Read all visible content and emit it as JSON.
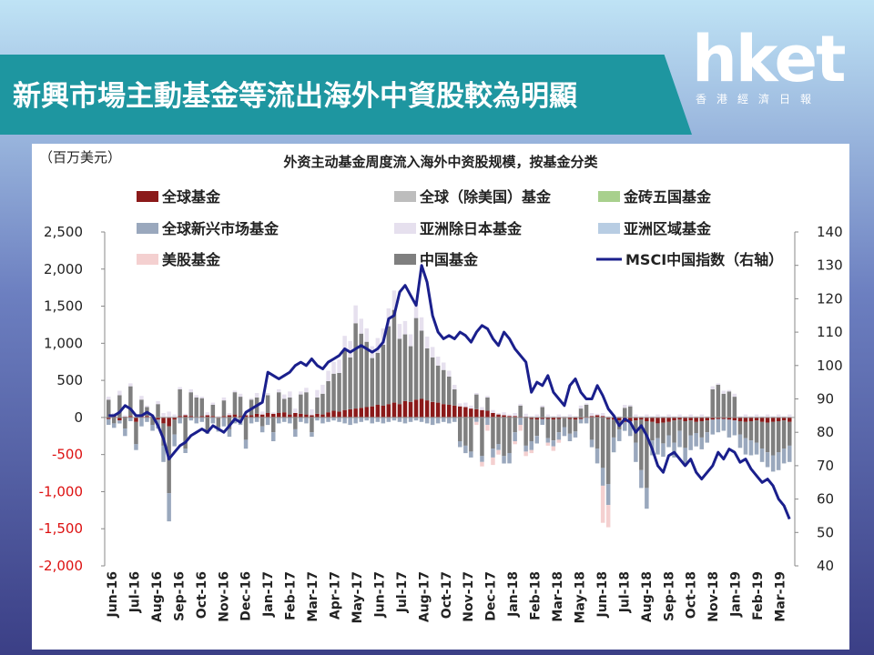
{
  "header": {
    "title": "新興市場主動基金等流出海外中資股較為明顯",
    "logo_text": "hket",
    "logo_sub": "香港經濟日報"
  },
  "chart_data": {
    "type": "bar",
    "title": "外资主动基金周度流入海外中资股规模，按基金分类",
    "ylabel_left": "（百万美元）",
    "left_axis": {
      "ylim": [
        -2000,
        2500
      ],
      "ticks": [
        "2,500",
        "2,000",
        "1,500",
        "1,000",
        "500",
        "0",
        "-500",
        "-1,000",
        "-1,500",
        "-2,000"
      ]
    },
    "right_axis": {
      "ylim": [
        40,
        140
      ],
      "ticks": [
        "140",
        "130",
        "120",
        "110",
        "100",
        "90",
        "80",
        "70",
        "60",
        "50",
        "40"
      ]
    },
    "x_tick_labels": [
      "Jun-16",
      "Jul-16",
      "Aug-16",
      "Sep-16",
      "Oct-16",
      "Nov-16",
      "Dec-16",
      "Jan-17",
      "Feb-17",
      "Mar-17",
      "Apr-17",
      "May-17",
      "Jun-17",
      "Jul-17",
      "Aug-17",
      "Oct-17",
      "Nov-17",
      "Dec-17",
      "Jan-18",
      "Feb-18",
      "Mar-18",
      "May-18",
      "Jun-18",
      "Jul-18",
      "Aug-18",
      "Sep-18",
      "Oct-18",
      "Nov-18",
      "Jan-19",
      "Feb-19",
      "Mar-19"
    ],
    "legend": [
      {
        "name": "全球基金",
        "color": "#8b1a1a",
        "kind": "bar"
      },
      {
        "name": "全球（除美国）基金",
        "color": "#bdbdbd",
        "kind": "bar"
      },
      {
        "name": "金砖五国基金",
        "color": "#a8d08d",
        "kind": "bar"
      },
      {
        "name": "全球新兴市场基金",
        "color": "#9aa8bd",
        "kind": "bar"
      },
      {
        "name": "亚洲除日本基金",
        "color": "#e6e0ee",
        "kind": "bar"
      },
      {
        "name": "亚洲区域基金",
        "color": "#b8cde3",
        "kind": "bar"
      },
      {
        "name": "美股基金",
        "color": "#f4d0d0",
        "kind": "bar"
      },
      {
        "name": "中国基金",
        "color": "#7f7f7f",
        "kind": "bar"
      },
      {
        "name": "MSCI中国指数（右轴）",
        "color": "#1a1f8c",
        "kind": "line"
      }
    ],
    "msci_weekly": [
      85,
      85,
      86,
      88,
      87,
      85,
      85,
      86,
      85,
      82,
      78,
      72,
      74,
      76,
      77,
      79,
      80,
      81,
      80,
      82,
      81,
      80,
      82,
      84,
      83,
      86,
      87,
      88,
      89,
      98,
      97,
      96,
      97,
      98,
      100,
      101,
      100,
      102,
      100,
      99,
      101,
      102,
      103,
      105,
      104,
      105,
      106,
      105,
      104,
      105,
      107,
      114,
      115,
      122,
      124,
      121,
      118,
      130,
      125,
      115,
      110,
      108,
      109,
      108,
      110,
      109,
      107,
      110,
      112,
      111,
      108,
      106,
      110,
      108,
      105,
      103,
      101,
      92,
      95,
      94,
      97,
      92,
      90,
      88,
      94,
      96,
      92,
      90,
      90,
      94,
      91,
      87,
      85,
      82,
      84,
      83,
      80,
      82,
      79,
      75,
      70,
      68,
      73,
      74,
      72,
      70,
      72,
      68,
      66,
      68,
      70,
      74,
      72,
      75,
      74,
      71,
      72,
      69,
      67,
      65,
      66,
      64,
      60,
      58,
      54
    ],
    "bar_series": [
      {
        "name": "全球基金",
        "values": [
          -20,
          30,
          -40,
          10,
          20,
          -60,
          40,
          20,
          10,
          -30,
          -80,
          -120,
          -30,
          20,
          30,
          20,
          10,
          20,
          30,
          20,
          -10,
          20,
          30,
          40,
          20,
          30,
          30,
          50,
          40,
          60,
          50,
          60,
          70,
          40,
          60,
          50,
          40,
          30,
          50,
          40,
          70,
          90,
          80,
          100,
          110,
          120,
          130,
          140,
          150,
          170,
          160,
          180,
          200,
          180,
          220,
          210,
          240,
          250,
          230,
          210,
          200,
          180,
          170,
          160,
          150,
          140,
          120,
          110,
          100,
          90,
          60,
          40,
          30,
          20,
          20,
          10,
          10,
          -20,
          -30,
          -20,
          -20,
          -30,
          -20,
          -10,
          -20,
          -30,
          -20,
          10,
          20,
          30,
          20,
          -20,
          -30,
          -40,
          -60,
          -50,
          -40,
          -30,
          -50,
          -60,
          -80,
          -70,
          -60,
          -40,
          -30,
          -50,
          -40,
          -60,
          -50,
          -40,
          -30,
          -20,
          -20,
          -30,
          -40,
          -50,
          -60,
          -50,
          -40,
          -60,
          -70,
          -60,
          -50,
          -40,
          -60
        ]
      },
      {
        "name": "中国基金",
        "values": [
          240,
          -80,
          300,
          -150,
          400,
          -300,
          200,
          120,
          -100,
          180,
          -300,
          -900,
          -200,
          360,
          -420,
          320,
          260,
          240,
          -180,
          150,
          -120,
          210,
          -160,
          300,
          260,
          -300,
          210,
          220,
          -120,
          240,
          -200,
          280,
          180,
          230,
          -160,
          260,
          300,
          -200,
          220,
          280,
          420,
          500,
          520,
          800,
          700,
          1150,
          1000,
          880,
          650,
          700,
          820,
          1050,
          1250,
          880,
          900,
          750,
          1100,
          920,
          700,
          600,
          500,
          460,
          380,
          220,
          -320,
          -380,
          -460,
          200,
          -520,
          180,
          -420,
          -360,
          -520,
          -480,
          -200,
          150,
          -380,
          -300,
          -220,
          140,
          -260,
          -280,
          -180,
          -120,
          -200,
          -160,
          120,
          160,
          -300,
          -420,
          -680,
          -880,
          -240,
          -120,
          130,
          150,
          -300,
          -680,
          -900,
          -250,
          -200,
          -280,
          -180,
          -300,
          -150,
          -360,
          -200,
          -150,
          -220,
          -160,
          380,
          440,
          320,
          350,
          280,
          -180,
          -220,
          -260,
          -300,
          -360,
          -400,
          -450,
          -420,
          -380,
          -320
        ]
      },
      {
        "name": "全球新兴市场基金",
        "values": [
          -80,
          -60,
          -40,
          -100,
          -50,
          -80,
          -120,
          -60,
          -80,
          -120,
          -220,
          -380,
          -160,
          -80,
          -60,
          -40,
          -80,
          -60,
          -40,
          -80,
          -60,
          -120,
          -100,
          -80,
          -100,
          -120,
          -80,
          -60,
          -80,
          -100,
          -120,
          -80,
          -60,
          -80,
          -100,
          -60,
          -80,
          -60,
          -40,
          -80,
          -60,
          -40,
          -60,
          -80,
          -100,
          -80,
          -60,
          -40,
          -80,
          -60,
          -80,
          -60,
          -40,
          -60,
          -80,
          -60,
          -40,
          -60,
          -80,
          -100,
          -80,
          -60,
          -80,
          -60,
          -80,
          -100,
          -80,
          -60,
          -80,
          -100,
          -120,
          -80,
          -100,
          -140,
          -120,
          -100,
          -80,
          -120,
          -100,
          -80,
          -60,
          -80,
          -100,
          -120,
          -100,
          -80,
          -60,
          -80,
          -100,
          -200,
          -240,
          -280,
          -200,
          -160,
          -120,
          -200,
          -260,
          -240,
          -280,
          -200,
          -220,
          -180,
          -160,
          -200,
          -220,
          -240,
          -200,
          -180,
          -160,
          -140,
          -200,
          -180,
          -160,
          -240,
          -200,
          -180,
          -220,
          -200,
          -160,
          -180,
          -200,
          -220,
          -240,
          -200,
          -220
        ]
      },
      {
        "name": "亚洲除日本基金",
        "values": [
          40,
          30,
          60,
          20,
          40,
          30,
          50,
          20,
          30,
          40,
          60,
          80,
          40,
          30,
          20,
          40,
          30,
          20,
          40,
          30,
          20,
          40,
          30,
          20,
          40,
          30,
          20,
          60,
          40,
          30,
          20,
          40,
          60,
          80,
          60,
          40,
          60,
          80,
          100,
          120,
          140,
          160,
          180,
          200,
          220,
          240,
          200,
          180,
          160,
          200,
          220,
          240,
          260,
          200,
          180,
          160,
          200,
          180,
          160,
          140,
          120,
          100,
          80,
          60,
          40,
          60,
          40,
          20,
          40,
          20,
          40,
          20,
          40,
          20,
          40,
          20,
          40,
          20,
          40,
          20,
          40,
          20,
          40,
          20,
          40,
          20,
          40,
          20,
          40,
          20,
          40,
          20,
          40,
          20,
          40,
          20,
          40,
          20,
          40,
          20,
          40,
          20,
          40,
          20,
          40,
          20,
          40,
          20,
          40,
          20,
          40,
          20,
          40,
          20,
          40,
          20,
          40,
          20,
          40,
          20,
          40,
          20,
          40,
          20,
          40
        ]
      },
      {
        "name": "美股基金",
        "values": [
          0,
          0,
          0,
          0,
          0,
          0,
          0,
          0,
          0,
          0,
          0,
          0,
          0,
          0,
          0,
          0,
          0,
          0,
          0,
          0,
          0,
          0,
          0,
          0,
          0,
          0,
          0,
          0,
          0,
          0,
          0,
          0,
          0,
          0,
          0,
          0,
          0,
          0,
          0,
          0,
          0,
          0,
          0,
          0,
          0,
          0,
          0,
          0,
          0,
          0,
          0,
          0,
          0,
          0,
          0,
          0,
          0,
          0,
          0,
          0,
          0,
          0,
          0,
          0,
          0,
          0,
          0,
          -40,
          -60,
          -80,
          -100,
          -60,
          0,
          0,
          -40,
          -80,
          -60,
          -40,
          0,
          0,
          -40,
          -60,
          -40,
          0,
          0,
          0,
          0,
          0,
          0,
          0,
          -500,
          -300,
          0,
          0,
          0,
          0,
          0,
          0,
          0,
          0,
          0,
          0,
          0,
          0,
          0,
          0,
          0,
          0,
          0,
          0,
          0,
          0,
          0,
          0,
          0,
          0,
          0,
          0,
          0,
          0,
          0,
          0,
          0
        ]
      }
    ]
  }
}
